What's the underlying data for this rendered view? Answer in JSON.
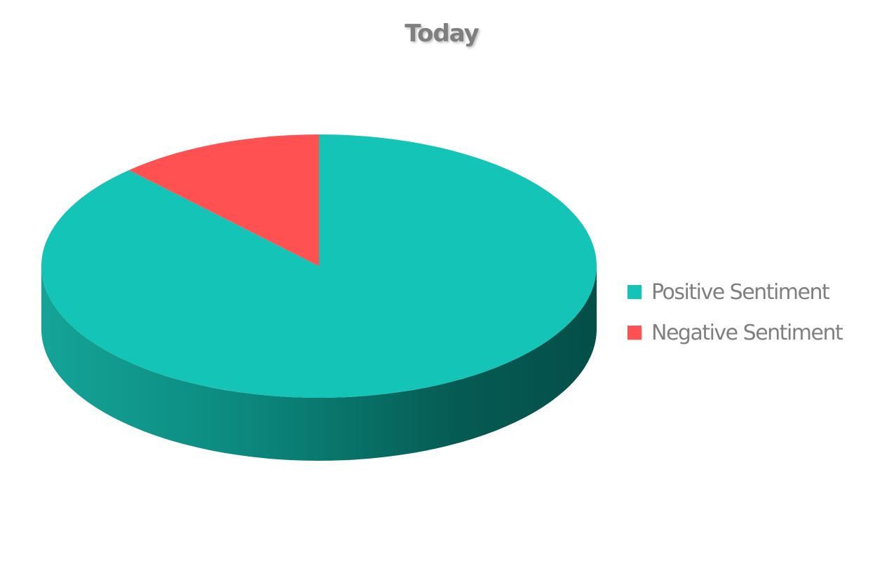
{
  "colors": {
    "positive": "#14C4B6",
    "negative": "#FF5152",
    "text": "#7F7F7F"
  },
  "chart_data": {
    "type": "pie",
    "title": "Today",
    "three_d": true,
    "start_angle_deg": 0,
    "direction": "clockwise",
    "legend_position": "right",
    "categories": [
      "Positive Sentiment",
      "Negative Sentiment"
    ],
    "values": [
      88,
      12
    ]
  }
}
